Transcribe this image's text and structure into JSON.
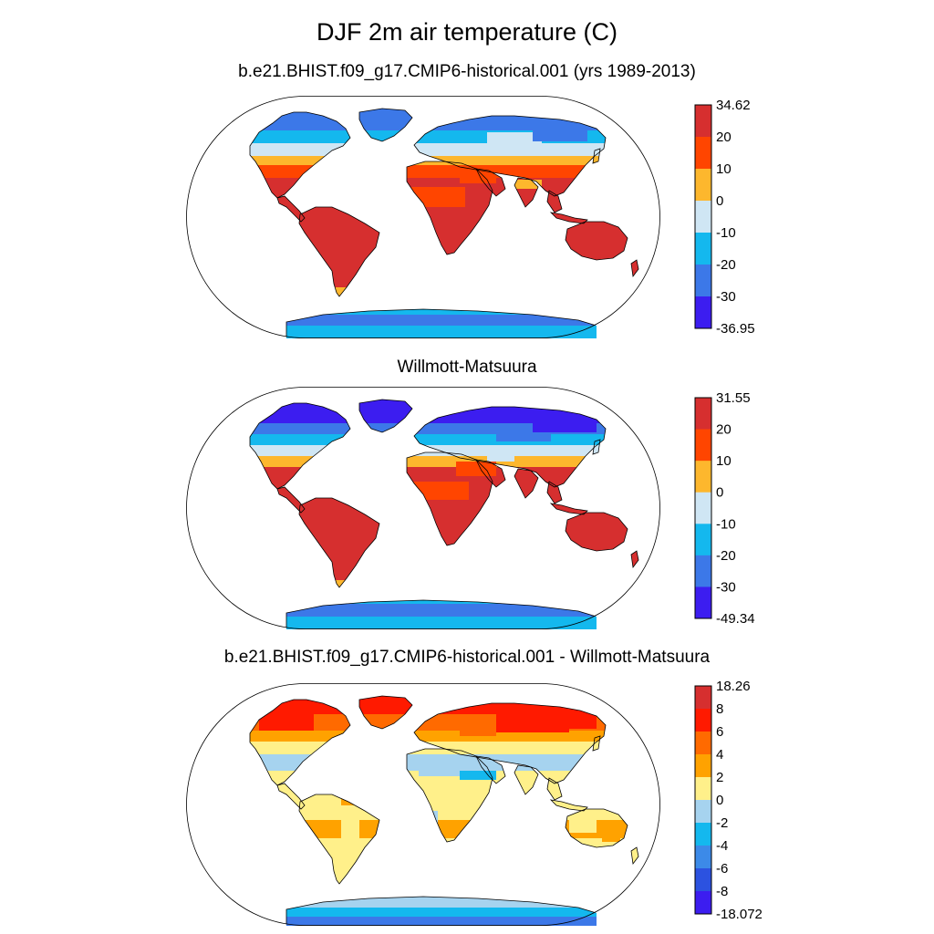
{
  "title": "DJF 2m air temperature (C)",
  "panels": [
    {
      "title": "b.e21.BHIST.f09_g17.CMIP6-historical.001 (yrs 1989-2013)",
      "colorbar": {
        "labels": [
          "34.62",
          "20",
          "10",
          "0",
          "-10",
          "-20",
          "-30",
          "-36.95"
        ],
        "colors": [
          "#d62f2f",
          "#ff4500",
          "#fdb72d",
          "#cfe6f4",
          "#14b8ee",
          "#3c78e8",
          "#3c1df0"
        ]
      }
    },
    {
      "title": "Willmott-Matsuura",
      "colorbar": {
        "labels": [
          "31.55",
          "20",
          "10",
          "0",
          "-10",
          "-20",
          "-30",
          "-49.34"
        ],
        "colors": [
          "#d62f2f",
          "#ff4500",
          "#fdb72d",
          "#cfe6f4",
          "#14b8ee",
          "#3c78e8",
          "#3c1df0"
        ]
      }
    },
    {
      "title": "b.e21.BHIST.f09_g17.CMIP6-historical.001 - Willmott-Matsuura",
      "colorbar": {
        "labels": [
          "18.26",
          "8",
          "6",
          "4",
          "2",
          "0",
          "-2",
          "-4",
          "-6",
          "-8",
          "-18.072"
        ],
        "colors": [
          "#d62f2f",
          "#ff1a00",
          "#ff6a00",
          "#ffa200",
          "#fff08a",
          "#a6d3ef",
          "#14b8ee",
          "#3c8ae8",
          "#2c52e0",
          "#3c1df0"
        ]
      }
    }
  ]
}
